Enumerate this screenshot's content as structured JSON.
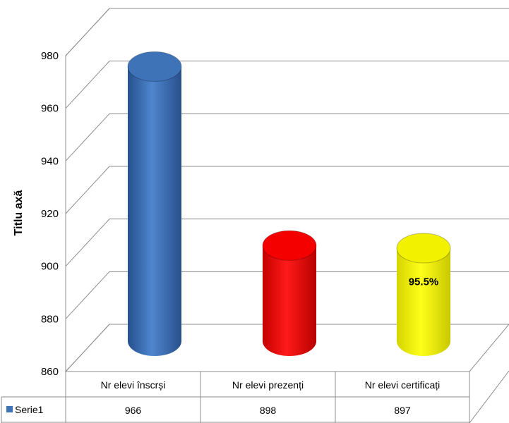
{
  "chart_data": {
    "type": "bar",
    "style": "3d-cylinder",
    "categories": [
      "Nr elevi înscrși",
      "Nr elevi prezenți",
      "Nr elevi certificați"
    ],
    "series": [
      {
        "name": "Serie1",
        "values": [
          966,
          898,
          897
        ],
        "colors": [
          "#3F73B8",
          "#F40000",
          "#F2F200"
        ]
      }
    ],
    "ylabel": "Titlu axă",
    "ylim": [
      860,
      980
    ],
    "yticks": [
      860,
      880,
      900,
      920,
      940,
      960,
      980
    ],
    "grid": true,
    "data_labels": [
      null,
      null,
      "95.5%"
    ],
    "data_table": true,
    "legend_key_color": "#3F73B8"
  }
}
